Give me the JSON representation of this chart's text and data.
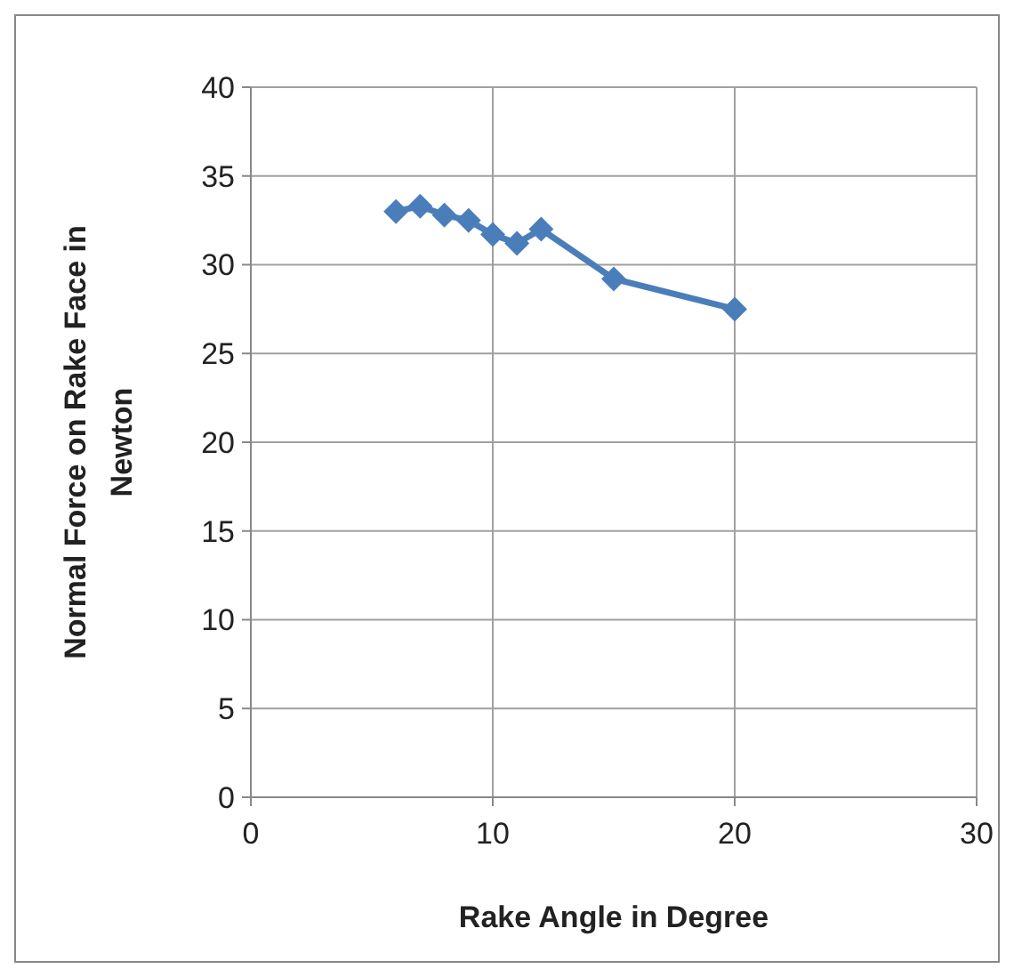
{
  "chart_data": {
    "type": "line",
    "xlabel": "Rake Angle in Degree",
    "ylabel": "Normal  Force on Rake Face in Newton",
    "x": [
      6,
      7,
      8,
      9,
      10,
      11,
      12,
      15,
      20
    ],
    "series": [
      {
        "color": "#4a7ebb",
        "values": [
          33.0,
          33.3,
          32.8,
          32.5,
          31.7,
          31.2,
          32.0,
          29.2,
          27.5
        ]
      }
    ],
    "xlim": [
      0,
      30
    ],
    "xticks": [
      0,
      10,
      20,
      30
    ],
    "ylim": [
      0,
      40
    ],
    "yticks": [
      0,
      5,
      10,
      15,
      20,
      25,
      30,
      35,
      40
    ],
    "grid": true,
    "marker": "diamond",
    "line_style": "solid"
  }
}
